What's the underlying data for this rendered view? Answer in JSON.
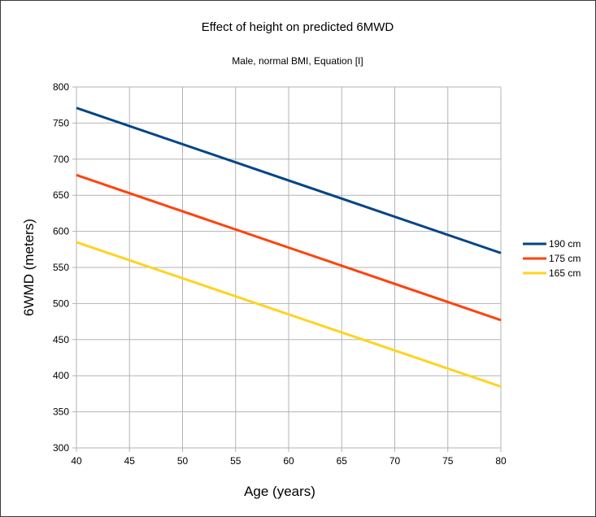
{
  "chart_data": {
    "type": "line",
    "title": "Effect of height on predicted 6MWD",
    "subtitle": "Male, normal BMI, Equation [I]",
    "xlabel": "Age (years)",
    "ylabel": "6WMD (meters)",
    "x": [
      40,
      80
    ],
    "xlim": [
      40,
      80
    ],
    "ylim": [
      300,
      800
    ],
    "xticks": [
      40,
      45,
      50,
      55,
      60,
      65,
      70,
      75,
      80
    ],
    "yticks": [
      300,
      350,
      400,
      450,
      500,
      550,
      600,
      650,
      700,
      750,
      800
    ],
    "grid": true,
    "legend_position": "right",
    "series": [
      {
        "name": "190 cm",
        "values": [
          771,
          570
        ],
        "color": "#004586"
      },
      {
        "name": "175 cm",
        "values": [
          678,
          477
        ],
        "color": "#ff420e"
      },
      {
        "name": "165 cm",
        "values": [
          585,
          385
        ],
        "color": "#ffd320"
      }
    ]
  }
}
